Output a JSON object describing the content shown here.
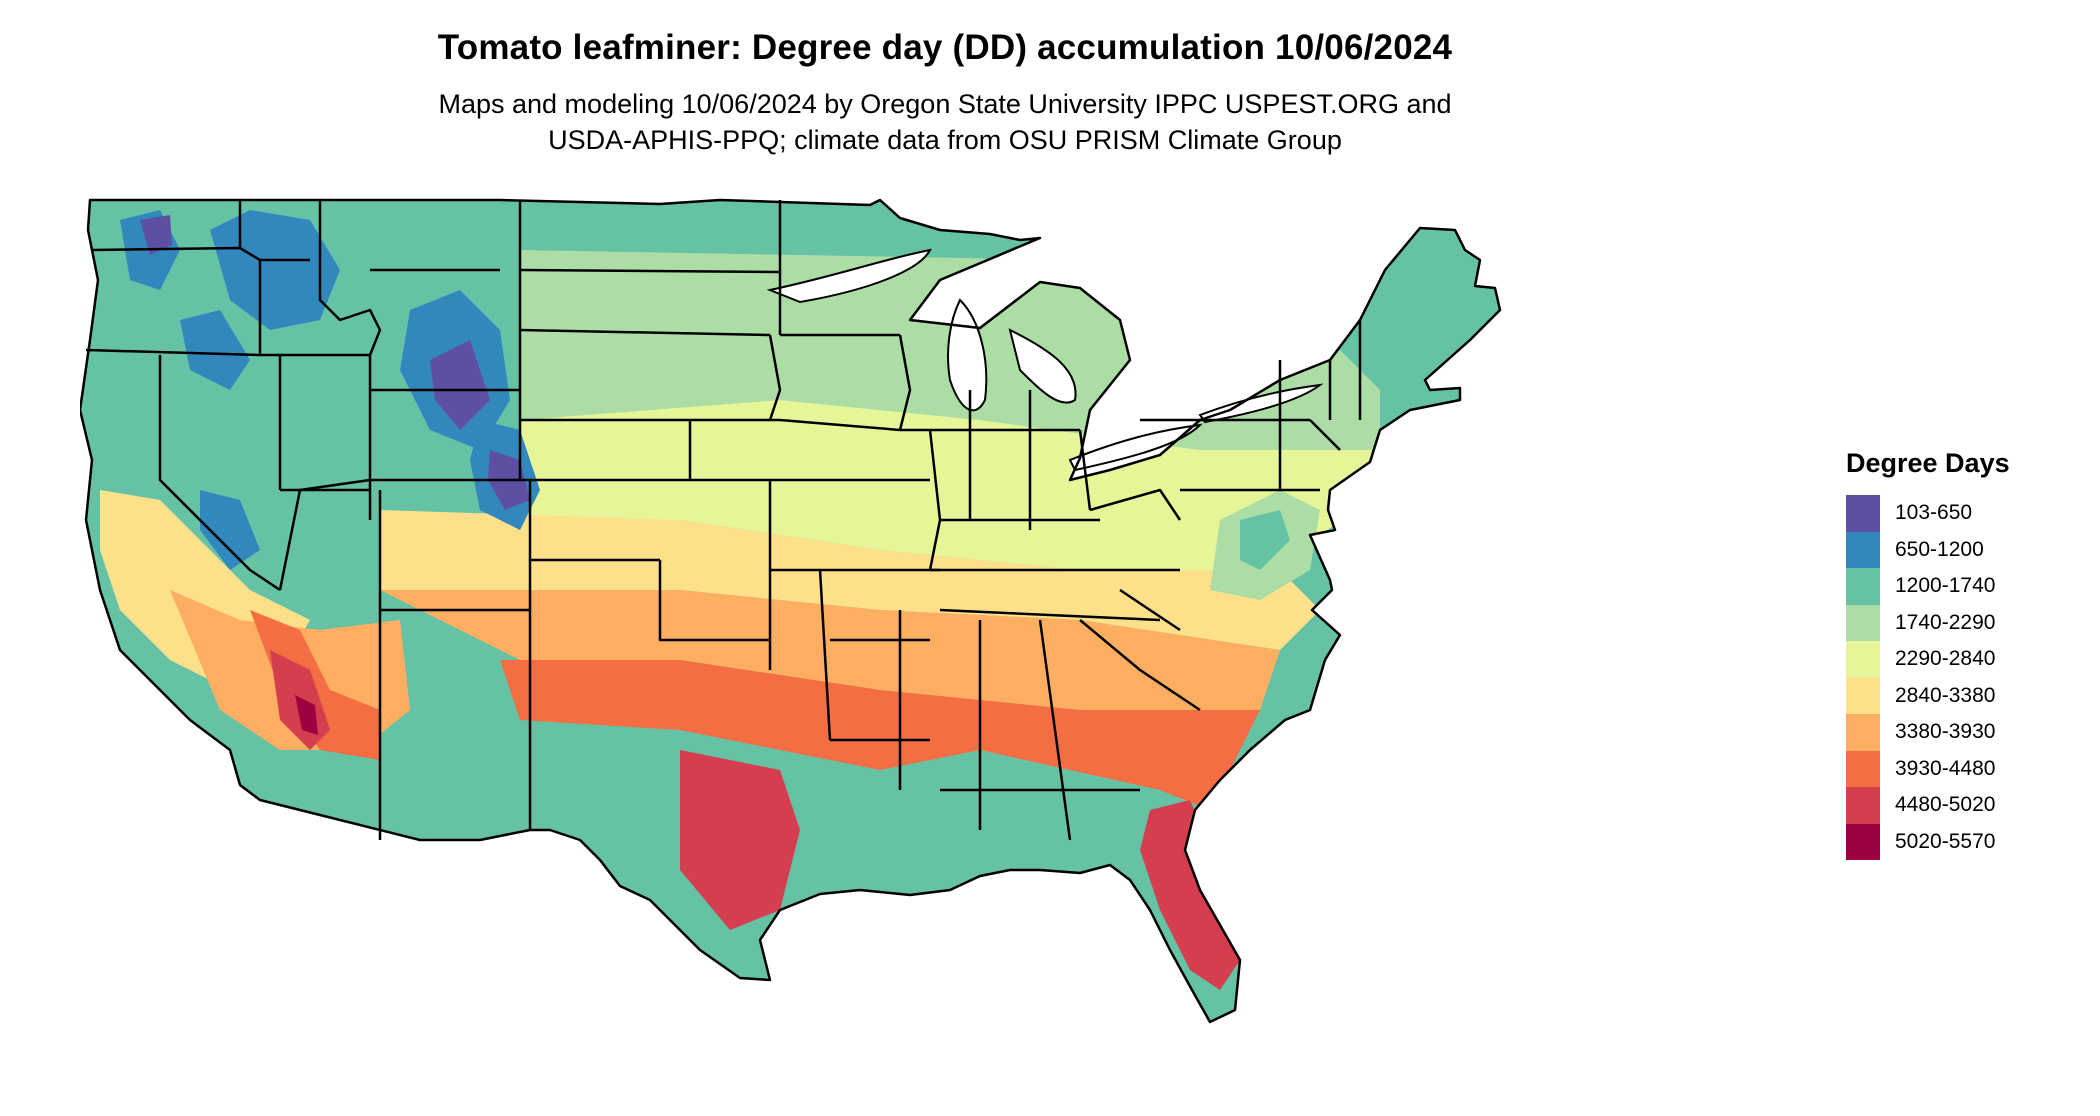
{
  "title": "Tomato leafminer: Degree day (DD) accumulation 10/06/2024",
  "subtitle_lines": [
    "Maps and modeling 10/06/2024 by Oregon State University IPPC USPEST.ORG and",
    "USDA-APHIS-PPQ; climate data from OSU PRISM Climate Group"
  ],
  "legend": {
    "title": "Degree Days",
    "items": [
      {
        "label": "103-650",
        "color": "#5e4fa2"
      },
      {
        "label": "650-1200",
        "color": "#3288bd"
      },
      {
        "label": "1200-1740",
        "color": "#66c2a5"
      },
      {
        "label": "1740-2290",
        "color": "#abdda4"
      },
      {
        "label": "2290-2840",
        "color": "#e6f598"
      },
      {
        "label": "2840-3380",
        "color": "#fee08b"
      },
      {
        "label": "3380-3930",
        "color": "#fdae61"
      },
      {
        "label": "3930-4480",
        "color": "#f46d43"
      },
      {
        "label": "4480-5020",
        "color": "#d53e4f"
      },
      {
        "label": "5020-5570",
        "color": "#9e0142"
      }
    ]
  },
  "map": {
    "region": "Contiguous United States",
    "boundaries": "state outlines",
    "water_color": "#ffffff",
    "boundary_color": "#000000"
  }
}
